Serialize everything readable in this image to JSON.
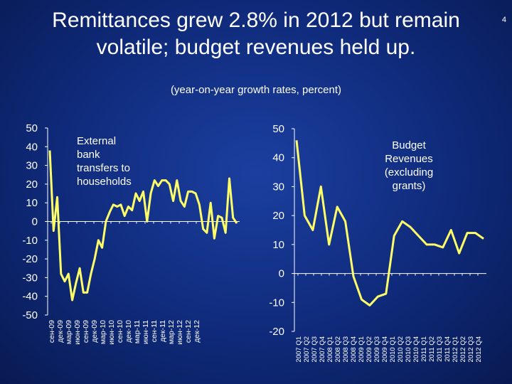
{
  "title": "Remittances grew 2.8% in 2012 but remain volatile; budget revenues held up.",
  "page_number": "4",
  "subtitle": "(year-on-year growth rates, percent)",
  "colors": {
    "line": "#ffff66",
    "axis": "#ffffff",
    "text": "#ffffff"
  },
  "chart_data": [
    {
      "type": "line",
      "title": "",
      "series_label": "External bank transfers to households",
      "series_label_lines": [
        "External",
        "bank",
        "transfers to",
        "households"
      ],
      "xlabel": "",
      "ylabel": "",
      "ylim": [
        -50,
        50
      ],
      "yticks": [
        50,
        40,
        30,
        20,
        10,
        0,
        -10,
        -20,
        -30,
        -40,
        -50
      ],
      "xtick_labels": [
        "сен-09",
        "дек-09",
        "мар-09",
        "июн-09",
        "сен-09",
        "дек-09",
        "мар-10",
        "июн-10",
        "сен-10",
        "дек-10",
        "мар-11",
        "июн-11",
        "сен-11",
        "дек-11",
        "мар-12",
        "июн-12",
        "сен-12",
        "дек-12"
      ],
      "values": [
        38,
        -5,
        13,
        -28,
        -32,
        -28,
        -42,
        -33,
        -25,
        -38,
        -38,
        -28,
        -20,
        -10,
        -14,
        0,
        5,
        9,
        8,
        9,
        3,
        8,
        6,
        15,
        11,
        16,
        0,
        15,
        22,
        19,
        22,
        22,
        20,
        11,
        22,
        11,
        8,
        16,
        16,
        15,
        9,
        -4,
        -6,
        10,
        -9,
        3,
        2,
        -6,
        23,
        2,
        -1
      ]
    },
    {
      "type": "line",
      "title": "",
      "series_label": "Budget Revenues (excluding grants)",
      "series_label_lines": [
        "Budget",
        "Revenues",
        "(excluding",
        "grants)"
      ],
      "xlabel": "",
      "ylabel": "",
      "ylim": [
        -20,
        50
      ],
      "yticks": [
        50,
        40,
        30,
        20,
        10,
        0,
        -10,
        -20
      ],
      "xtick_labels": [
        "2007 Q1",
        "2007 Q2",
        "2007 Q3",
        "2007 Q4",
        "2008 Q1",
        "2008 Q2",
        "2008 Q3",
        "2008 Q4",
        "2009 Q1",
        "2009 Q2",
        "2009 Q3",
        "2009 Q4",
        "2010 Q1",
        "2010 Q2",
        "2010 Q3",
        "2010 Q4",
        "2011 Q1",
        "2011 Q2",
        "2011 Q3",
        "2011 Q4",
        "2012 Q1",
        "2012 Q2",
        "2012 Q3",
        "2012 Q4"
      ],
      "values": [
        46,
        20,
        15,
        30,
        10,
        23,
        18,
        -1,
        -9,
        -11,
        -8,
        -7,
        13,
        18,
        16,
        13,
        10,
        10,
        9,
        15,
        7,
        14,
        14,
        12
      ]
    }
  ]
}
